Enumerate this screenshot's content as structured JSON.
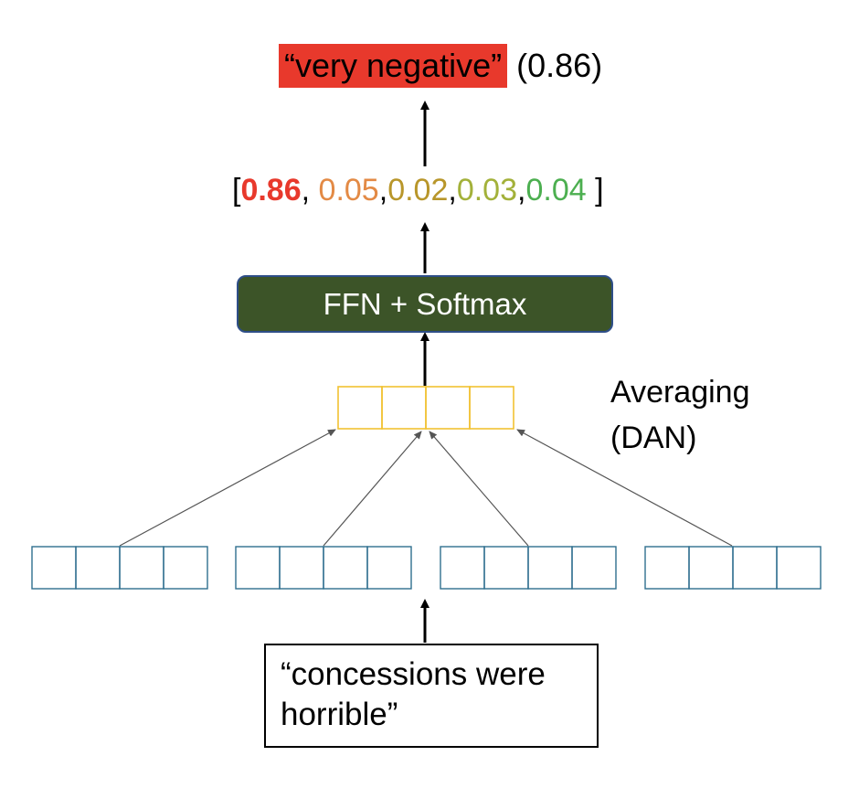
{
  "output": {
    "label": "“very negative”",
    "score": "(0.86)",
    "highlight_color": "#e8392c"
  },
  "probabilities": {
    "open_bracket": "[",
    "close_bracket": " ]",
    "values": [
      {
        "text": "0.86",
        "color": "#e8392c"
      },
      {
        "text": "0.05",
        "color": "#e38a45"
      },
      {
        "text": "0.02",
        "color": "#b8962a"
      },
      {
        "text": "0.03",
        "color": "#a3b13a"
      },
      {
        "text": "0.04",
        "color": "#4caf50"
      }
    ],
    "separators": [
      ", ",
      ",",
      ",",
      ","
    ]
  },
  "ffn": {
    "label": "FFN + Softmax",
    "fill_color": "#3c5428",
    "border_color": "#2e4e88"
  },
  "averaging": {
    "line1": "Averaging",
    "line2": "(DAN)",
    "cells": 4,
    "cell_color": "#f1c232"
  },
  "word_embeddings": {
    "count": 4,
    "cells_per_vector": 4,
    "cell_color": "#2f6f8f"
  },
  "input": {
    "line1": "“concessions were",
    "line2": "horrible”"
  }
}
